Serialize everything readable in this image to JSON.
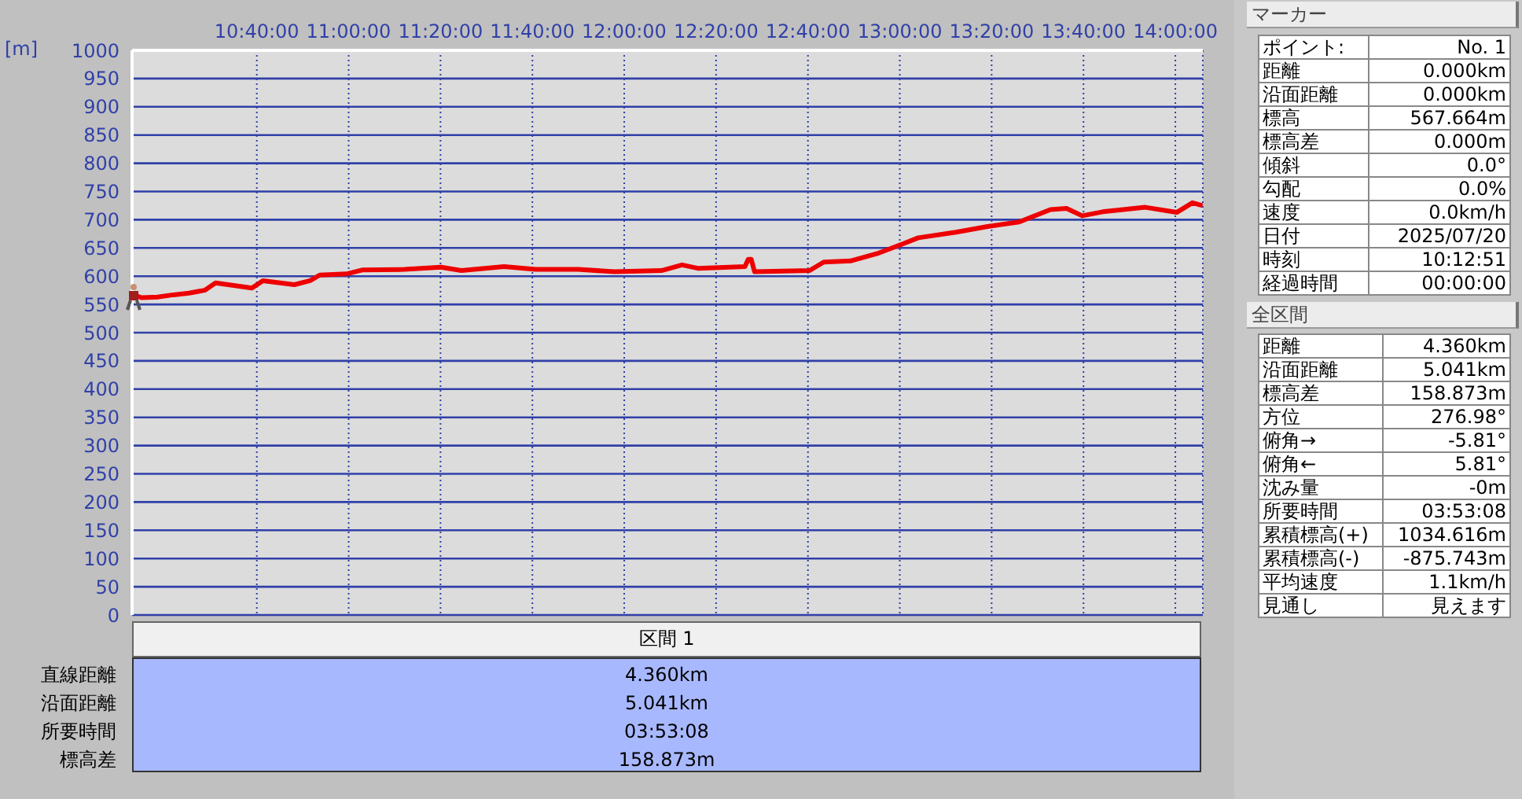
{
  "chart_data": {
    "type": "line",
    "ylabel": "[m]",
    "x": [
      10.214,
      10.248,
      10.306,
      10.363,
      10.42,
      10.477,
      10.517,
      10.649,
      10.689,
      10.803,
      10.86,
      10.895,
      10.992,
      11.049,
      11.203,
      11.335,
      11.409,
      11.564,
      11.678,
      11.832,
      11.964,
      12.135,
      12.21,
      12.267,
      12.438,
      12.45,
      12.461,
      12.473,
      12.673,
      12.724,
      12.821,
      12.918,
      13.01,
      13.067,
      13.204,
      13.319,
      13.433,
      13.547,
      13.605,
      13.662,
      13.736,
      13.891,
      14.005,
      14.062,
      14.099
    ],
    "series": [
      {
        "color": "#ee0000",
        "values": [
          568,
          562,
          563,
          567,
          570,
          575,
          588,
          579,
          592,
          585,
          592,
          602,
          604,
          611,
          612,
          616,
          610,
          617,
          612,
          612,
          608,
          610,
          620,
          614,
          617,
          630,
          630,
          608,
          610,
          625,
          627,
          640,
          657,
          668,
          678,
          688,
          696,
          718,
          720,
          707,
          714,
          722,
          713,
          730,
          725
        ]
      }
    ],
    "xlim": [
      10.214,
      14.0997
    ],
    "xticks": [
      {
        "value": 10.6667,
        "label": "10:40:00"
      },
      {
        "value": 11,
        "label": "11:00:00"
      },
      {
        "value": 11.3333,
        "label": "11:20:00"
      },
      {
        "value": 11.6667,
        "label": "11:40:00"
      },
      {
        "value": 12,
        "label": "12:00:00"
      },
      {
        "value": 12.3333,
        "label": "12:20:00"
      },
      {
        "value": 12.6667,
        "label": "12:40:00"
      },
      {
        "value": 13,
        "label": "13:00:00"
      },
      {
        "value": 13.3333,
        "label": "13:20:00"
      },
      {
        "value": 13.6667,
        "label": "13:40:00"
      },
      {
        "value": 14,
        "label": "14:00:00"
      }
    ],
    "ylim": [
      0,
      1000
    ],
    "yticks": [
      0,
      50,
      100,
      150,
      200,
      250,
      300,
      350,
      400,
      450,
      500,
      550,
      600,
      650,
      700,
      750,
      800,
      850,
      900,
      950,
      1000
    ],
    "grid": true,
    "marker": "none",
    "annotations": [
      "マーカー",
      "ポイント:",
      "No. 1",
      "距離",
      "0.000km",
      "沿面距離",
      "0.000km",
      "標高",
      "567.664m",
      "標高差",
      "0.000m",
      "傾斜",
      "0.0°",
      "勾配",
      "0.0%",
      "速度",
      "0.0km/h",
      "日付",
      "2025/07/20",
      "時刻",
      "10:12:51",
      "経過時間",
      "00:00:00",
      "全区間",
      "距離",
      "4.360km",
      "沿面距離",
      "5.041km",
      "標高差",
      "158.873m",
      "方位",
      "276.98°",
      "俯角→",
      "-5.81°",
      "俯角←",
      "5.81°",
      "沈み量",
      "-0m",
      "所要時間",
      "03:53:08",
      "累積標高(+)",
      "1034.616m",
      "累積標高(-)",
      "-875.743m",
      "平均速度",
      "1.1km/h",
      "見通し",
      "見えます",
      "区間 1",
      "直線距離",
      "4.360km",
      "沿面距離",
      "5.041km",
      "所要時間",
      "03:53:08",
      "標高差",
      "158.873m"
    ]
  }
}
